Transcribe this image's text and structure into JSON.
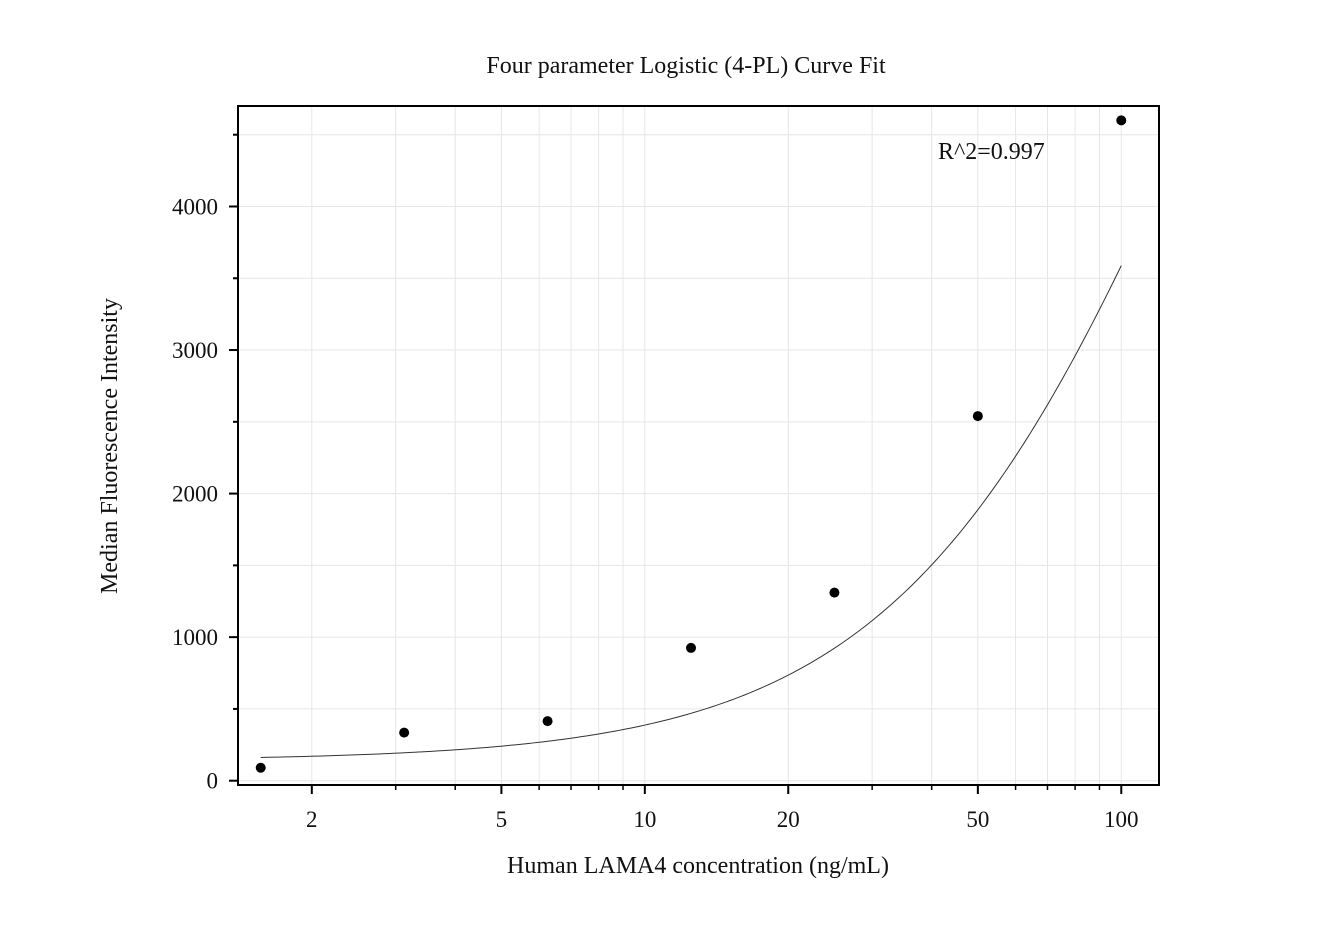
{
  "chart_data": {
    "type": "scatter",
    "title": "Four parameter Logistic (4-PL) Curve Fit",
    "xlabel": "Human LAMA4 concentration (ng/mL)",
    "ylabel": "Median Fluorescence Intensity",
    "x_scale": "log",
    "xlim": [
      1.4,
      120
    ],
    "ylim": [
      -30,
      4700
    ],
    "x_ticks": [
      2,
      5,
      10,
      20,
      50,
      100
    ],
    "x_tick_labels": [
      "2",
      "5",
      "10",
      "20",
      "50",
      "100"
    ],
    "y_ticks": [
      0,
      1000,
      2000,
      3000,
      4000
    ],
    "y_tick_labels": [
      "0",
      "1000",
      "2000",
      "3000",
      "4000"
    ],
    "grid": true,
    "legend": "none",
    "annotation": "R^2=0.997",
    "series": [
      {
        "kind": "points",
        "x": [
          1.5625,
          3.125,
          6.25,
          12.5,
          25,
          50,
          100
        ],
        "y": [
          90,
          335,
          415,
          925,
          1310,
          2540,
          4600
        ]
      },
      {
        "kind": "fit-curve",
        "model": "4PL",
        "params": {
          "A": 140,
          "B": 1.32,
          "C": 160,
          "D": 10000
        },
        "domain": [
          1.5625,
          100
        ]
      }
    ],
    "colors": {
      "points": "#000000",
      "curve": "#333333",
      "grid": "#e6e6e6",
      "frame": "#000000"
    }
  }
}
